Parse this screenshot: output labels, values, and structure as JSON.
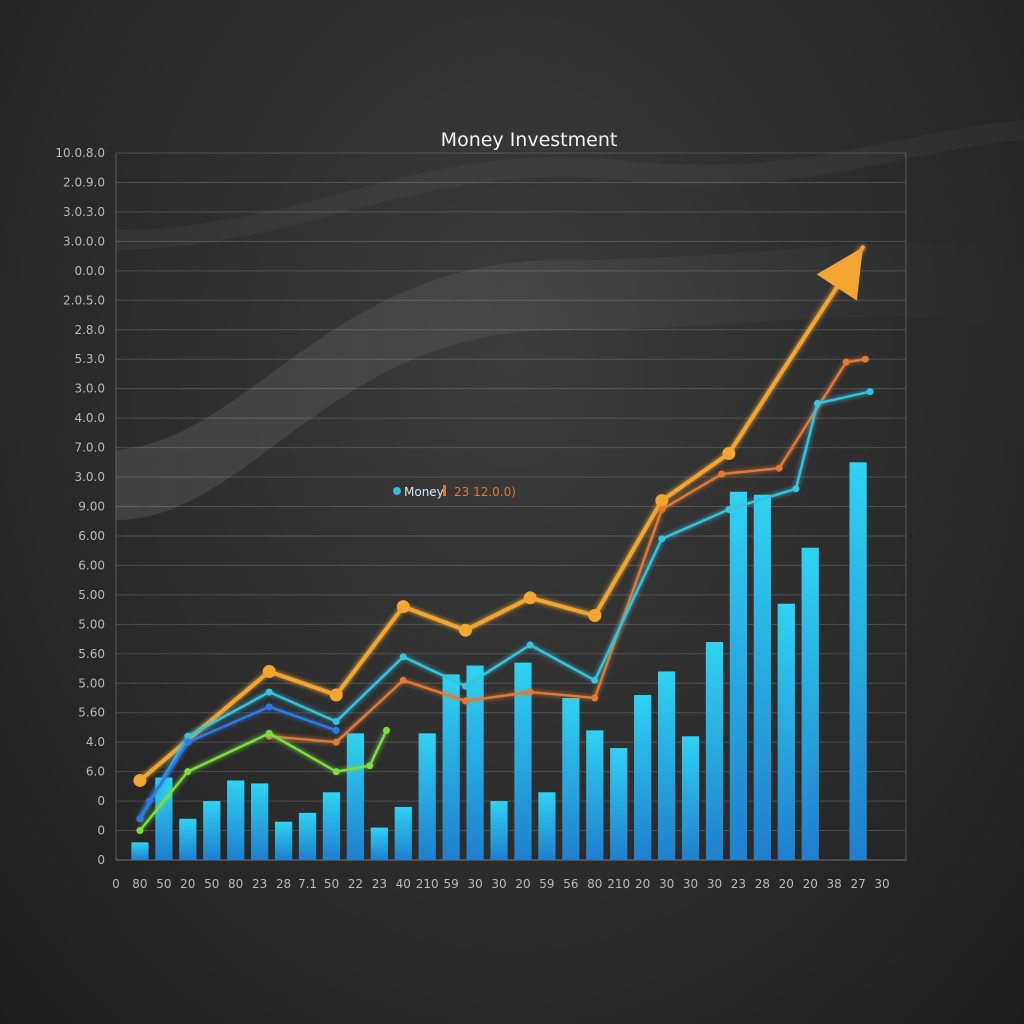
{
  "chart_data": {
    "type": "bar",
    "title": "Money Investment",
    "xlabel": "",
    "ylabel": "",
    "ylim": [
      0,
      24
    ],
    "grid": true,
    "y_tick_labels": [
      "0",
      "0",
      "0",
      "6.0",
      "4.0",
      "5.60",
      "5.00",
      "5.60",
      "5.00",
      "5.00",
      "6.00",
      "6.00",
      "9.00",
      "3.0.0",
      "7.0.0",
      "4.0.0",
      "3.0.0",
      "5.3.0",
      "2.8.0",
      "2.0.5.0",
      "0.0.0",
      "3.0.0.0",
      "3.0.3.0",
      "2.0.9.0",
      "10.0.8.0"
    ],
    "x_tick_labels": [
      "0",
      "80",
      "50",
      "20",
      "50",
      "80",
      "23",
      "28",
      "7.1",
      "50",
      "22",
      "23",
      "40",
      "210",
      "59",
      "30",
      "30",
      "20",
      "59",
      "56",
      "80",
      "210",
      "20",
      "30",
      "30",
      "30",
      "23",
      "28",
      "20",
      "20",
      "38",
      "27",
      "30"
    ],
    "legend": {
      "placement": "center",
      "entries": [
        {
          "name": "Money",
          "color": "#3ab8e0"
        },
        {
          "name": "23 12.0.0)",
          "color": "#e07830"
        }
      ]
    },
    "bars": {
      "color": "#29c5ec",
      "x": [
        1,
        2,
        3,
        4,
        5,
        6,
        7,
        8,
        9,
        10,
        11,
        12,
        13,
        14,
        15,
        16,
        17,
        18,
        19,
        20,
        21,
        22,
        23,
        24,
        25,
        26,
        27,
        28,
        29,
        30,
        31
      ],
      "values": [
        0.6,
        2.8,
        1.4,
        2.0,
        2.7,
        2.6,
        1.3,
        1.6,
        2.3,
        4.3,
        1.1,
        1.8,
        4.3,
        6.3,
        6.6,
        2.0,
        6.7,
        2.3,
        5.5,
        4.4,
        3.8,
        5.6,
        6.4,
        4.2,
        7.4,
        12.5,
        12.4,
        8.7,
        10.6,
        0,
        13.5
      ]
    },
    "series": [
      {
        "key": "orange_top",
        "color": "#f3a531",
        "arrow": true,
        "x": [
          1,
          6.4,
          9.2,
          12,
          14.6,
          17.3,
          20,
          22.8,
          25.6,
          31.2
        ],
        "values": [
          2.7,
          6.4,
          5.6,
          8.6,
          7.8,
          8.9,
          8.3,
          12.2,
          13.8,
          20.8
        ]
      },
      {
        "key": "orange_thin",
        "color": "#e07a34",
        "x": [
          6.4,
          9.2,
          12,
          14.6,
          17.3,
          20,
          22.8,
          25.3,
          27.7,
          30.5,
          31.3
        ],
        "values": [
          4.2,
          4.0,
          6.1,
          5.4,
          5.7,
          5.5,
          11.9,
          13.1,
          13.3,
          16.9,
          17.0
        ]
      },
      {
        "key": "cyan",
        "color": "#36c4e0",
        "x": [
          1,
          3,
          6.4,
          9.2,
          12,
          14.6,
          17.3,
          20,
          22.8,
          25.6,
          28.4,
          29.3,
          31.5
        ],
        "values": [
          1.4,
          4.2,
          5.7,
          4.7,
          6.9,
          5.9,
          7.3,
          6.1,
          10.9,
          11.9,
          12.6,
          15.5,
          15.9
        ]
      },
      {
        "key": "blue",
        "color": "#2d79e8",
        "x": [
          1,
          1.4,
          3,
          6.4,
          9.2
        ],
        "values": [
          1.4,
          2.0,
          4.0,
          5.2,
          4.4
        ]
      },
      {
        "key": "green",
        "color": "#7ae040",
        "x": [
          1,
          3,
          6.4,
          9.2,
          10.6,
          11.3
        ],
        "values": [
          1.0,
          3.0,
          4.3,
          3.0,
          3.2,
          4.4
        ]
      }
    ]
  }
}
